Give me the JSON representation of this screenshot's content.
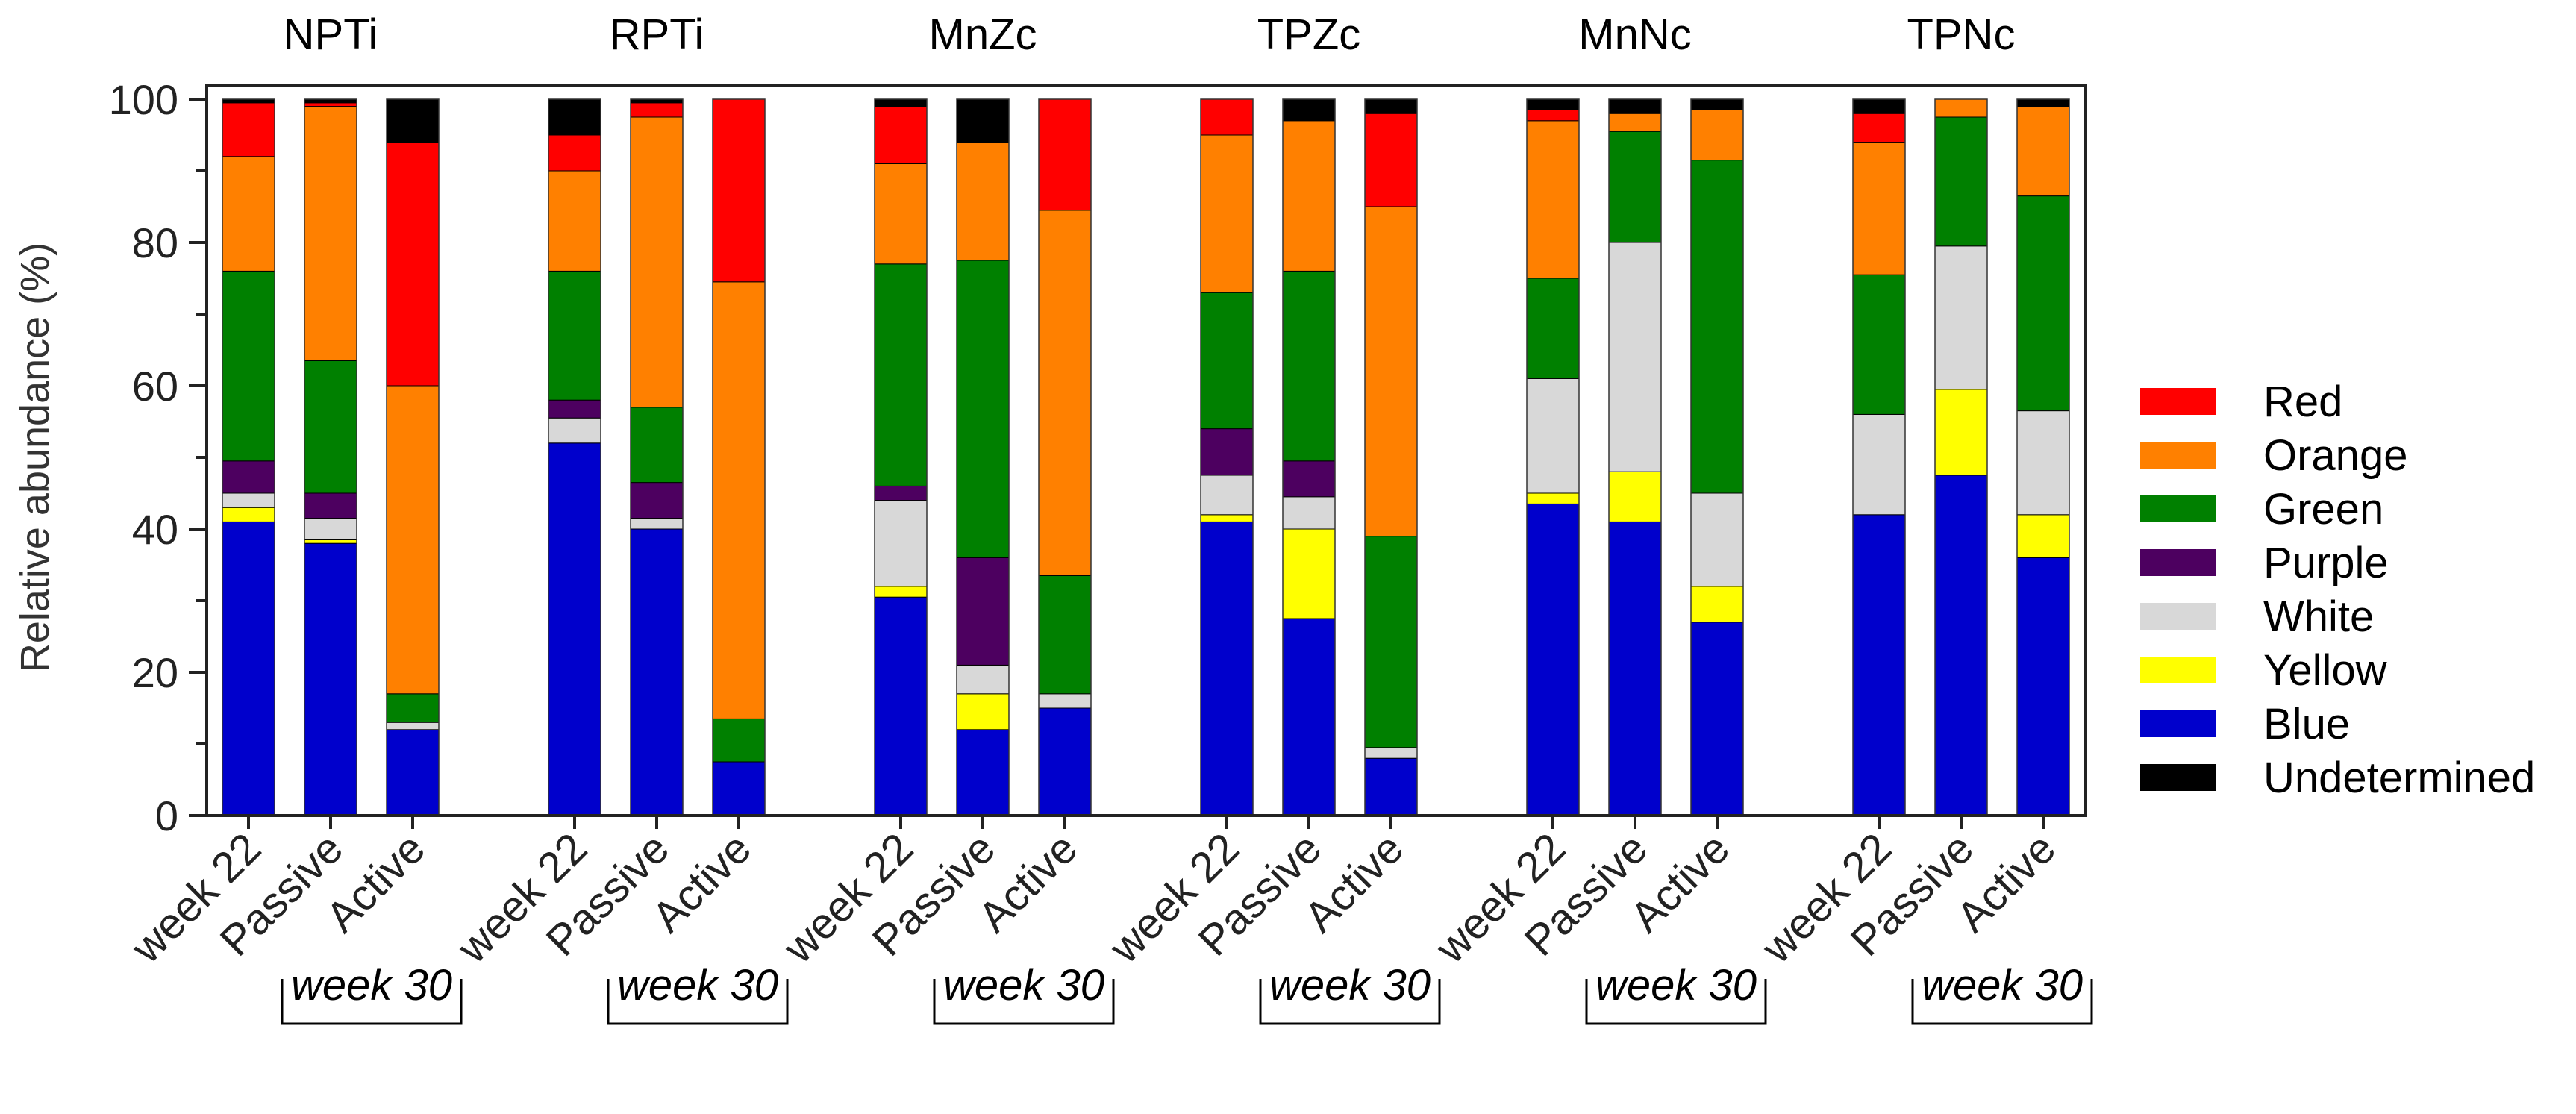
{
  "chart_data": {
    "type": "stacked-bar",
    "ylabel": "Relative abundance (%)",
    "xlabel": "",
    "ylim": [
      0,
      100
    ],
    "yticks": [
      0,
      20,
      40,
      60,
      80,
      100
    ],
    "bracket_label": "week 30",
    "legend_position": "right",
    "series": [
      {
        "name": "Red",
        "color": "#ff0000"
      },
      {
        "name": "Orange",
        "color": "#ff8000"
      },
      {
        "name": "Green",
        "color": "#008000"
      },
      {
        "name": "Purple",
        "color": "#4d0060"
      },
      {
        "name": "White",
        "color": "#d8d8d8"
      },
      {
        "name": "Yellow",
        "color": "#ffff00"
      },
      {
        "name": "Blue",
        "color": "#0000cc"
      },
      {
        "name": "Undetermined",
        "color": "#000000"
      }
    ],
    "groups": [
      {
        "name": "NPTi",
        "bars": [
          {
            "label": "week 22",
            "values": {
              "Blue": 41.0,
              "Yellow": 2.0,
              "White": 2.0,
              "Purple": 4.5,
              "Green": 26.5,
              "Orange": 16.0,
              "Red": 7.5,
              "Undetermined": 0.5
            }
          },
          {
            "label": "Passive",
            "values": {
              "Blue": 38.0,
              "Yellow": 0.5,
              "White": 3.0,
              "Purple": 3.5,
              "Green": 18.5,
              "Orange": 35.5,
              "Red": 0.5,
              "Undetermined": 0.5
            }
          },
          {
            "label": "Active",
            "values": {
              "Blue": 12.0,
              "Yellow": 0.0,
              "White": 1.0,
              "Purple": 0.0,
              "Green": 4.0,
              "Orange": 43.0,
              "Red": 34.0,
              "Undetermined": 6.0
            }
          }
        ]
      },
      {
        "name": "RPTi",
        "bars": [
          {
            "label": "week 22",
            "values": {
              "Blue": 52.0,
              "Yellow": 0.0,
              "White": 3.5,
              "Purple": 2.5,
              "Green": 18.0,
              "Orange": 14.0,
              "Red": 5.0,
              "Undetermined": 5.0
            }
          },
          {
            "label": "Passive",
            "values": {
              "Blue": 40.0,
              "Yellow": 0.0,
              "White": 1.5,
              "Purple": 5.0,
              "Green": 10.5,
              "Orange": 40.5,
              "Red": 2.0,
              "Undetermined": 0.5
            }
          },
          {
            "label": "Active",
            "values": {
              "Blue": 7.5,
              "Yellow": 0.0,
              "White": 0.0,
              "Purple": 0.0,
              "Green": 6.0,
              "Orange": 61.0,
              "Red": 25.5,
              "Undetermined": 0.0
            }
          }
        ]
      },
      {
        "name": "MnZc",
        "bars": [
          {
            "label": "week 22",
            "values": {
              "Blue": 30.5,
              "Yellow": 1.5,
              "White": 12.0,
              "Purple": 2.0,
              "Green": 31.0,
              "Orange": 14.0,
              "Red": 8.0,
              "Undetermined": 1.0
            }
          },
          {
            "label": "Passive",
            "values": {
              "Blue": 12.0,
              "Yellow": 5.0,
              "White": 4.0,
              "Purple": 15.0,
              "Green": 41.5,
              "Orange": 16.5,
              "Red": 0.0,
              "Undetermined": 6.0
            }
          },
          {
            "label": "Active",
            "values": {
              "Blue": 15.0,
              "Yellow": 0.0,
              "White": 2.0,
              "Purple": 0.0,
              "Green": 16.5,
              "Orange": 51.0,
              "Red": 15.5,
              "Undetermined": 0.0
            }
          }
        ]
      },
      {
        "name": "TPZc",
        "bars": [
          {
            "label": "week 22",
            "values": {
              "Blue": 41.0,
              "Yellow": 1.0,
              "White": 5.5,
              "Purple": 6.5,
              "Green": 19.0,
              "Orange": 22.0,
              "Red": 5.0,
              "Undetermined": 0.0
            }
          },
          {
            "label": "Passive",
            "values": {
              "Blue": 27.5,
              "Yellow": 12.5,
              "White": 4.5,
              "Purple": 5.0,
              "Green": 26.5,
              "Orange": 21.0,
              "Red": 0.0,
              "Undetermined": 3.0
            }
          },
          {
            "label": "Active",
            "values": {
              "Blue": 8.0,
              "Yellow": 0.0,
              "White": 1.5,
              "Purple": 0.0,
              "Green": 29.5,
              "Orange": 46.0,
              "Red": 13.0,
              "Undetermined": 2.0
            }
          }
        ]
      },
      {
        "name": "MnNc",
        "bars": [
          {
            "label": "week 22",
            "values": {
              "Blue": 43.5,
              "Yellow": 1.5,
              "White": 16.0,
              "Purple": 0.0,
              "Green": 14.0,
              "Orange": 22.0,
              "Red": 1.5,
              "Undetermined": 1.5
            }
          },
          {
            "label": "Passive",
            "values": {
              "Blue": 41.0,
              "Yellow": 7.0,
              "White": 32.0,
              "Purple": 0.0,
              "Green": 15.5,
              "Orange": 2.5,
              "Red": 0.0,
              "Undetermined": 2.0
            }
          },
          {
            "label": "Active",
            "values": {
              "Blue": 27.0,
              "Yellow": 5.0,
              "White": 13.0,
              "Purple": 0.0,
              "Green": 46.5,
              "Orange": 7.0,
              "Red": 0.0,
              "Undetermined": 1.5
            }
          }
        ]
      },
      {
        "name": "TPNc",
        "bars": [
          {
            "label": "week 22",
            "values": {
              "Blue": 42.0,
              "Yellow": 0.0,
              "White": 14.0,
              "Purple": 0.0,
              "Green": 19.5,
              "Orange": 18.5,
              "Red": 4.0,
              "Undetermined": 2.0
            }
          },
          {
            "label": "Passive",
            "values": {
              "Blue": 47.5,
              "Yellow": 12.0,
              "White": 20.0,
              "Purple": 0.0,
              "Green": 18.0,
              "Orange": 2.5,
              "Red": 0.0,
              "Undetermined": 0.0
            }
          },
          {
            "label": "Active",
            "values": {
              "Blue": 36.0,
              "Yellow": 6.0,
              "White": 14.5,
              "Purple": 0.0,
              "Green": 30.0,
              "Orange": 12.5,
              "Red": 0.0,
              "Undetermined": 1.0
            }
          }
        ]
      }
    ]
  }
}
